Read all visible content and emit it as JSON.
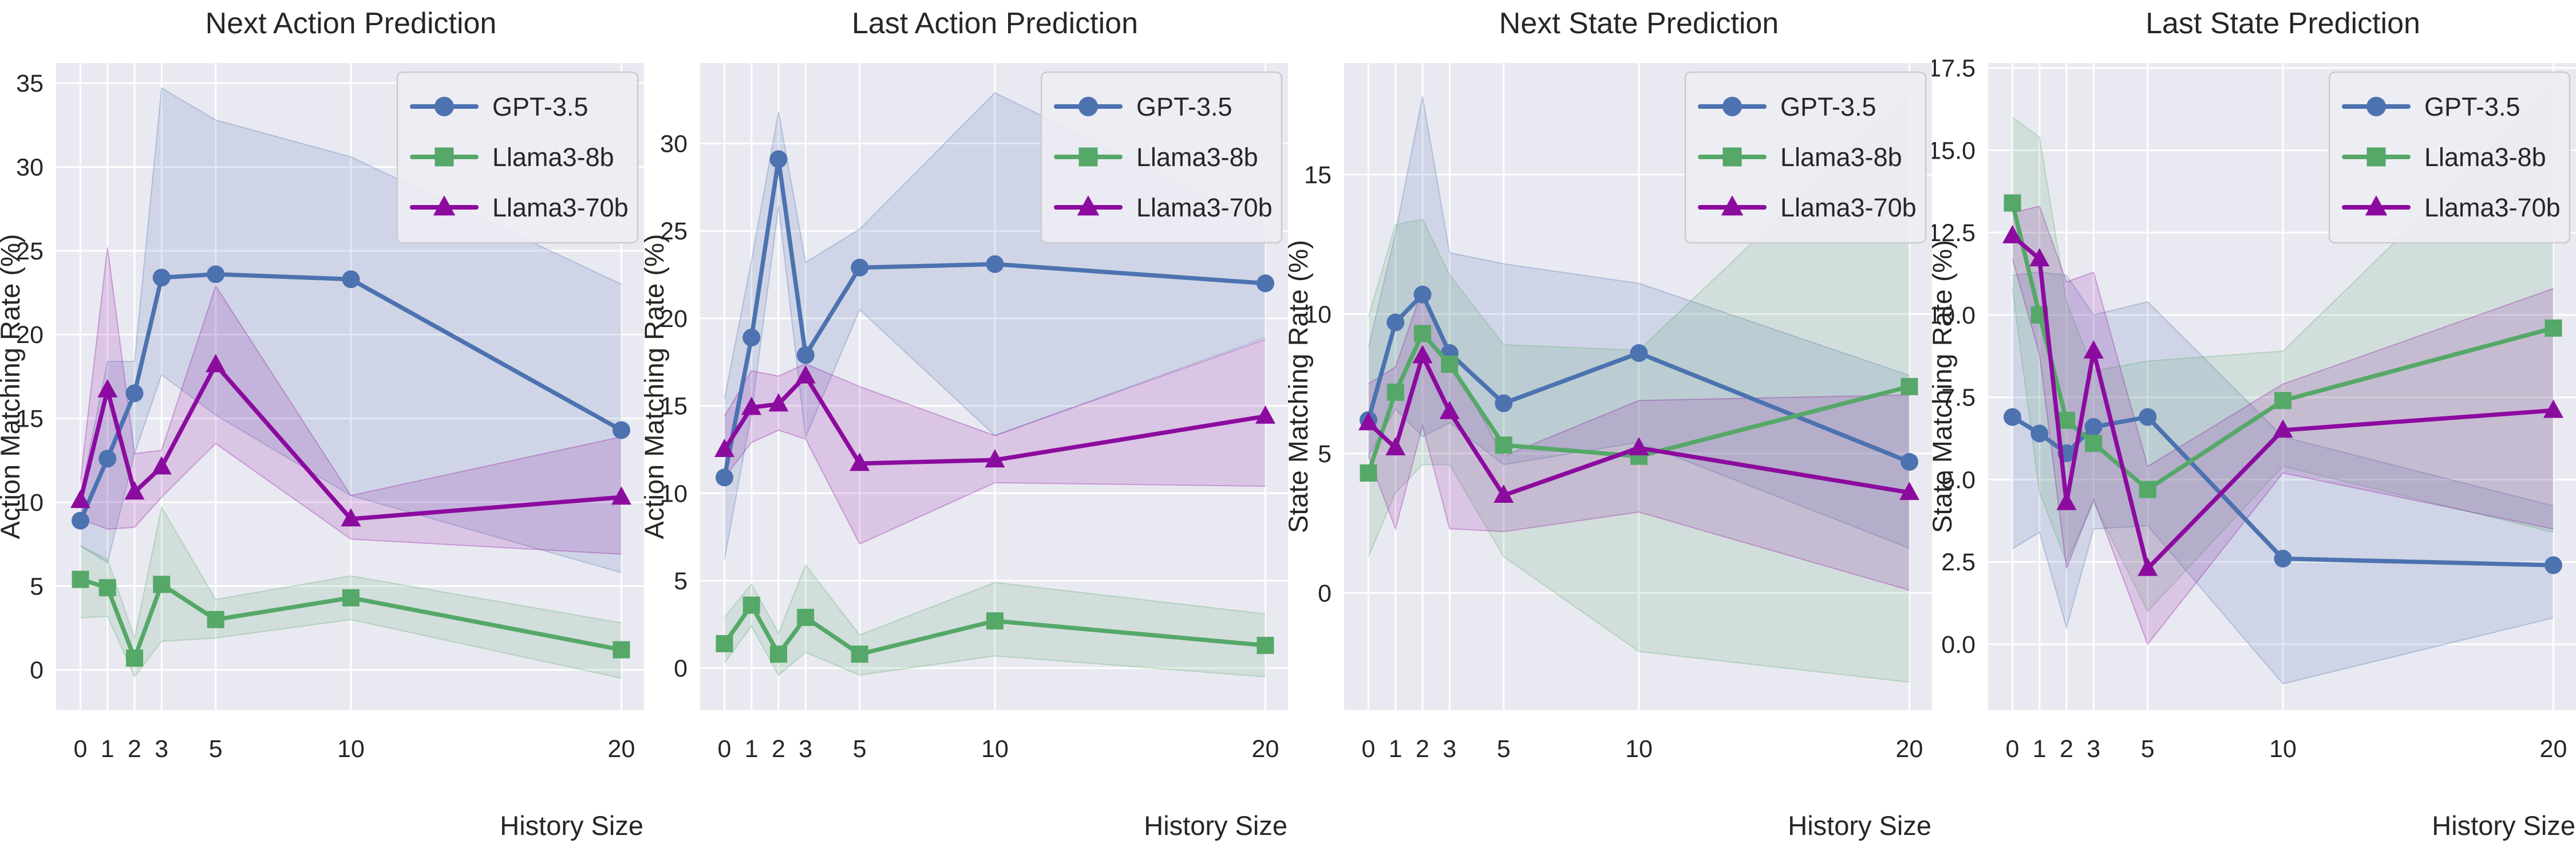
{
  "figure": {
    "background": "#ffffff",
    "axes_background": "#e9e9f1",
    "grid_color": "#ffffff",
    "text_color": "#262626",
    "legend_background": "#ededf4",
    "legend_border": "#cccccc"
  },
  "chart_data": [
    {
      "type": "line",
      "title": "Next Action Prediction",
      "xlabel": "History Size",
      "ylabel": "Action Matching Rate (%)",
      "x": [
        0,
        1,
        2,
        3,
        5,
        10,
        20
      ],
      "xtick_labels": [
        "0",
        "1",
        "2",
        "3",
        "5",
        "10",
        "20"
      ],
      "xlim": [
        -0.9,
        20.9
      ],
      "ylim": [
        -2.4,
        36.2
      ],
      "yticks": [
        0,
        5,
        10,
        15,
        20,
        25,
        30,
        35
      ],
      "ytick_labels": [
        "0",
        "5",
        "10",
        "15",
        "20",
        "25",
        "30",
        "35"
      ],
      "grid": true,
      "legend_position": "upper right",
      "series": [
        {
          "name": "GPT-3.5",
          "color": "#4C72B0",
          "marker": "circle",
          "values": [
            8.9,
            12.6,
            16.5,
            23.4,
            23.6,
            23.3,
            14.3
          ],
          "band_low": [
            7.4,
            6.4,
            12.9,
            17.6,
            15.2,
            10.4,
            5.8
          ],
          "band_high": [
            10.4,
            18.4,
            18.4,
            34.7,
            32.8,
            30.6,
            23.0
          ]
        },
        {
          "name": "Llama3-8b",
          "color": "#55A868",
          "marker": "square",
          "values": [
            5.4,
            4.9,
            0.7,
            5.1,
            3.0,
            4.3,
            1.2
          ],
          "band_low": [
            3.1,
            3.2,
            -0.4,
            1.7,
            1.9,
            3.0,
            -0.5
          ],
          "band_high": [
            7.4,
            6.6,
            1.9,
            9.7,
            4.2,
            5.6,
            2.8
          ]
        },
        {
          "name": "Llama3-70b",
          "color": "#8C0B9F",
          "marker": "triangle-up",
          "values": [
            10.1,
            16.7,
            10.6,
            12.1,
            18.2,
            9.0,
            10.3
          ],
          "band_low": [
            9.0,
            8.4,
            8.5,
            10.3,
            13.5,
            7.8,
            6.9
          ],
          "band_high": [
            11.3,
            25.2,
            12.9,
            13.1,
            22.9,
            10.4,
            13.9
          ]
        }
      ]
    },
    {
      "type": "line",
      "title": "Last Action Prediction",
      "xlabel": "History Size",
      "ylabel": "Action Matching Rate (%)",
      "x": [
        0,
        1,
        2,
        3,
        5,
        10,
        20
      ],
      "xtick_labels": [
        "0",
        "1",
        "2",
        "3",
        "5",
        "10",
        "20"
      ],
      "xlim": [
        -0.9,
        20.9
      ],
      "ylim": [
        -2.4,
        34.6
      ],
      "yticks": [
        0,
        5,
        10,
        15,
        20,
        25,
        30
      ],
      "ytick_labels": [
        "0",
        "5",
        "10",
        "15",
        "20",
        "25",
        "30"
      ],
      "grid": true,
      "legend_position": "upper right",
      "series": [
        {
          "name": "GPT-3.5",
          "color": "#4C72B0",
          "marker": "circle",
          "values": [
            10.9,
            18.9,
            29.1,
            17.9,
            22.9,
            23.1,
            22.0
          ],
          "band_low": [
            6.2,
            14.6,
            26.4,
            13.2,
            20.5,
            13.3,
            18.9
          ],
          "band_high": [
            15.4,
            23.3,
            31.8,
            23.2,
            25.1,
            32.9,
            25.3
          ]
        },
        {
          "name": "Llama3-8b",
          "color": "#55A868",
          "marker": "square",
          "values": [
            1.4,
            3.6,
            0.8,
            2.9,
            0.8,
            2.7,
            1.3
          ],
          "band_low": [
            0.3,
            2.4,
            -0.4,
            0.9,
            -0.4,
            0.7,
            -0.5
          ],
          "band_high": [
            2.9,
            4.8,
            2.0,
            5.9,
            1.9,
            4.9,
            3.1
          ]
        },
        {
          "name": "Llama3-70b",
          "color": "#8C0B9F",
          "marker": "triangle-up",
          "values": [
            12.5,
            14.9,
            15.1,
            16.7,
            11.7,
            11.9,
            14.4
          ],
          "band_low": [
            10.9,
            12.9,
            13.6,
            13.1,
            7.1,
            10.6,
            10.4
          ],
          "band_high": [
            14.4,
            17.0,
            16.7,
            17.4,
            16.1,
            13.3,
            18.8
          ]
        }
      ]
    },
    {
      "type": "line",
      "title": "Next State Prediction",
      "xlabel": "History Size",
      "ylabel": "State Matching Rate (%)",
      "x": [
        0,
        1,
        2,
        3,
        5,
        10,
        20
      ],
      "xtick_labels": [
        "0",
        "1",
        "2",
        "3",
        "5",
        "10",
        "20"
      ],
      "xlim": [
        -0.9,
        20.9
      ],
      "ylim": [
        -4.2,
        19.0
      ],
      "yticks": [
        0,
        5,
        10,
        15
      ],
      "ytick_labels": [
        "0",
        "5",
        "10",
        "15"
      ],
      "grid": true,
      "legend_position": "upper right",
      "series": [
        {
          "name": "GPT-3.5",
          "color": "#4C72B0",
          "marker": "circle",
          "values": [
            6.2,
            9.7,
            10.7,
            8.6,
            6.8,
            8.6,
            4.7
          ],
          "band_low": [
            4.9,
            6.6,
            5.6,
            6.1,
            4.6,
            5.4,
            1.6
          ],
          "band_high": [
            8.8,
            12.9,
            17.8,
            12.2,
            11.8,
            11.1,
            7.8
          ]
        },
        {
          "name": "Llama3-8b",
          "color": "#55A868",
          "marker": "square",
          "values": [
            4.3,
            7.2,
            9.3,
            8.2,
            5.3,
            4.9,
            7.4
          ],
          "band_low": [
            1.3,
            3.6,
            4.6,
            4.6,
            1.3,
            -2.1,
            -3.2
          ],
          "band_high": [
            9.9,
            13.2,
            13.4,
            11.4,
            8.9,
            8.7,
            17.9
          ]
        },
        {
          "name": "Llama3-70b",
          "color": "#8C0B9F",
          "marker": "triangle-up",
          "values": [
            6.1,
            5.2,
            8.5,
            6.5,
            3.5,
            5.2,
            3.6
          ],
          "band_low": [
            4.9,
            2.3,
            6.0,
            2.3,
            2.2,
            2.9,
            0.1
          ],
          "band_high": [
            7.5,
            8.1,
            10.9,
            8.4,
            4.9,
            6.9,
            7.1
          ]
        }
      ]
    },
    {
      "type": "line",
      "title": "Last State Prediction",
      "xlabel": "History Size",
      "ylabel": "State Matching Rate (%)",
      "x": [
        0,
        1,
        2,
        3,
        5,
        10,
        20
      ],
      "xtick_labels": [
        "0",
        "1",
        "2",
        "3",
        "5",
        "10",
        "20"
      ],
      "xlim": [
        -0.9,
        20.9
      ],
      "ylim": [
        -2.0,
        17.65
      ],
      "yticks": [
        0,
        2.5,
        5,
        7.5,
        10,
        12.5,
        15,
        17.5
      ],
      "ytick_labels": [
        "0.0",
        "2.5",
        "5.0",
        "7.5",
        "10.0",
        "12.5",
        "15.0",
        "17.5"
      ],
      "grid": true,
      "legend_position": "upper right",
      "series": [
        {
          "name": "GPT-3.5",
          "color": "#4C72B0",
          "marker": "circle",
          "values": [
            6.9,
            6.4,
            5.8,
            6.6,
            6.9,
            2.6,
            2.4
          ],
          "band_low": [
            2.9,
            3.4,
            0.5,
            3.5,
            3.6,
            -1.2,
            0.8
          ],
          "band_high": [
            11.2,
            11.3,
            11.2,
            10.0,
            10.4,
            6.3,
            4.2
          ]
        },
        {
          "name": "Llama3-8b",
          "color": "#55A868",
          "marker": "square",
          "values": [
            13.4,
            10.0,
            6.8,
            6.1,
            4.7,
            7.4,
            9.6
          ],
          "band_low": [
            10.8,
            4.6,
            2.5,
            4.3,
            1.0,
            5.4,
            3.4
          ],
          "band_high": [
            16.0,
            15.4,
            10.4,
            8.3,
            8.6,
            8.9,
            16.9
          ]
        },
        {
          "name": "Llama3-70b",
          "color": "#8C0B9F",
          "marker": "triangle-up",
          "values": [
            12.4,
            11.7,
            4.3,
            8.9,
            2.3,
            6.5,
            7.1
          ],
          "band_low": [
            11.7,
            8.8,
            2.3,
            4.4,
            0.0,
            5.2,
            3.5
          ],
          "band_high": [
            13.1,
            13.3,
            11.0,
            11.3,
            5.4,
            7.9,
            10.8
          ]
        }
      ]
    }
  ]
}
